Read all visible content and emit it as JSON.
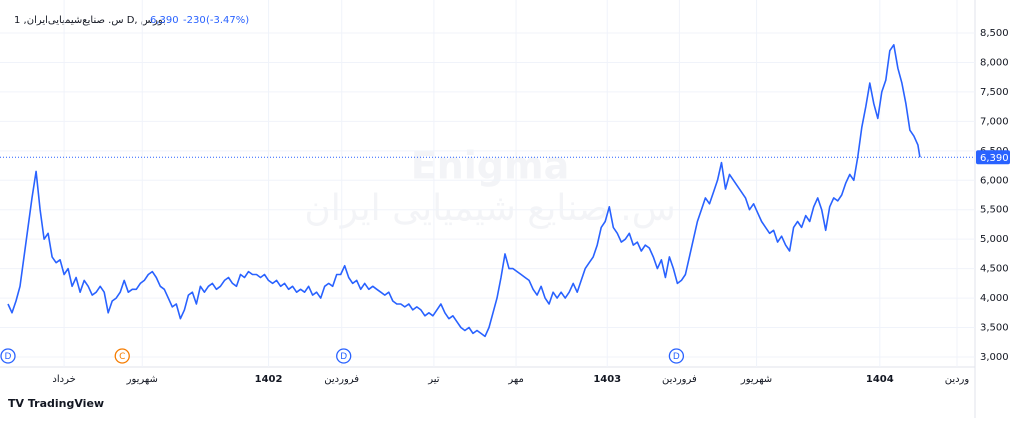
{
  "chart_data": {
    "type": "line",
    "title": "1 ,س. صنایع‌شیمیایی‌ایران D, بورس",
    "last_price": 6390,
    "last_price_label": "6,390",
    "change": -230,
    "change_percent_label": "(-3.47%)",
    "watermark": "Enigma",
    "watermark_sub": "س. صنایع شیمیایی ایران",
    "brand": "TradingView",
    "xlim": [
      0,
      240
    ],
    "ylim": [
      3000,
      8500
    ],
    "yticks": [
      {
        "value": 3000,
        "label": "3,000"
      },
      {
        "value": 3500,
        "label": "3,500"
      },
      {
        "value": 4000,
        "label": "4,000"
      },
      {
        "value": 4500,
        "label": "4,500"
      },
      {
        "value": 5000,
        "label": "5,000"
      },
      {
        "value": 5500,
        "label": "5,500"
      },
      {
        "value": 6000,
        "label": "6,000"
      },
      {
        "value": 6500,
        "label": "6,500"
      },
      {
        "value": 7000,
        "label": "7,000"
      },
      {
        "value": 7500,
        "label": "7,500"
      },
      {
        "value": 8000,
        "label": "8,000"
      },
      {
        "value": 8500,
        "label": "8,500"
      }
    ],
    "xticks": [
      {
        "value": 14,
        "label": "خرداد"
      },
      {
        "value": 33.5,
        "label": "شهریور"
      },
      {
        "value": 65,
        "label": "1402"
      },
      {
        "value": 83.25,
        "label": "فروردین"
      },
      {
        "value": 106.25,
        "label": "تیر"
      },
      {
        "value": 126.75,
        "label": "مهر"
      },
      {
        "value": 149.5,
        "label": "1403"
      },
      {
        "value": 167.5,
        "label": "فروردین"
      },
      {
        "value": 186.75,
        "label": "شهریور"
      },
      {
        "value": 217.5,
        "label": "1404"
      },
      {
        "value": 236.75,
        "label": "وردین"
      }
    ],
    "events": [
      {
        "label": "D",
        "x": 0,
        "color": "#2962ff"
      },
      {
        "label": "C",
        "x": 28.5,
        "color": "#f57c00"
      },
      {
        "label": "D",
        "x": 83.75,
        "color": "#2962ff"
      },
      {
        "label": "D",
        "x": 166.75,
        "color": "#2962ff"
      }
    ],
    "grid": true,
    "series": [
      {
        "name": "س. صنایع‌شیمیایی‌ایران",
        "color": "#2962ff",
        "x": [
          0,
          1,
          2,
          3,
          4,
          5,
          6,
          7,
          8,
          9,
          10,
          11,
          12,
          13,
          14,
          15,
          16,
          17,
          18,
          19,
          20,
          21,
          22,
          23,
          24,
          25,
          26,
          27,
          28,
          29,
          30,
          31,
          32,
          33,
          34,
          35,
          36,
          37,
          38,
          39,
          40,
          41,
          42,
          43,
          44,
          45,
          46,
          47,
          48,
          49,
          50,
          51,
          52,
          53,
          54,
          55,
          56,
          57,
          58,
          59,
          60,
          61,
          62,
          63,
          64,
          65,
          66,
          67,
          68,
          69,
          70,
          71,
          72,
          73,
          74,
          75,
          76,
          77,
          78,
          79,
          80,
          81,
          82,
          83,
          84,
          85,
          86,
          87,
          88,
          89,
          90,
          91,
          92,
          93,
          94,
          95,
          96,
          97,
          98,
          99,
          100,
          101,
          102,
          103,
          104,
          105,
          106,
          107,
          108,
          109,
          110,
          111,
          112,
          113,
          114,
          115,
          116,
          117,
          118,
          119,
          120,
          121,
          122,
          123,
          124,
          125,
          126,
          127,
          128,
          129,
          130,
          131,
          132,
          133,
          134,
          135,
          136,
          137,
          138,
          139,
          140,
          141,
          142,
          143,
          144,
          145,
          146,
          147,
          148,
          149,
          150,
          151,
          152,
          153,
          154,
          155,
          156,
          157,
          158,
          159,
          160,
          161,
          162,
          163,
          164,
          165,
          166,
          167,
          168,
          169,
          170,
          171,
          172,
          173,
          174,
          175,
          176,
          177,
          178,
          179,
          180,
          181,
          182,
          183,
          184,
          185,
          186,
          187,
          188,
          189,
          190,
          191,
          192,
          193,
          194,
          195,
          196,
          197,
          198,
          199,
          200,
          201,
          202,
          203,
          204,
          205,
          206,
          207,
          208,
          209,
          210,
          211,
          212,
          213,
          214,
          215,
          216,
          217,
          218,
          219,
          220,
          221,
          222,
          223,
          224,
          225,
          226,
          227,
          227.5
        ],
        "values": [
          3900,
          3750,
          3950,
          4200,
          4700,
          5200,
          5700,
          6150,
          5500,
          5000,
          5100,
          4700,
          4600,
          4650,
          4400,
          4500,
          4200,
          4350,
          4100,
          4300,
          4200,
          4050,
          4100,
          4200,
          4100,
          3750,
          3950,
          4000,
          4100,
          4300,
          4100,
          4150,
          4150,
          4250,
          4300,
          4400,
          4450,
          4350,
          4200,
          4150,
          4000,
          3850,
          3900,
          3650,
          3800,
          4050,
          4100,
          3900,
          4200,
          4100,
          4200,
          4250,
          4150,
          4200,
          4300,
          4350,
          4250,
          4200,
          4400,
          4350,
          4450,
          4400,
          4400,
          4350,
          4400,
          4300,
          4250,
          4300,
          4200,
          4250,
          4150,
          4200,
          4100,
          4150,
          4100,
          4200,
          4050,
          4100,
          4000,
          4200,
          4250,
          4200,
          4400,
          4400,
          4550,
          4350,
          4250,
          4300,
          4150,
          4250,
          4150,
          4200,
          4150,
          4100,
          4050,
          4100,
          3950,
          3900,
          3900,
          3850,
          3900,
          3800,
          3850,
          3800,
          3700,
          3750,
          3700,
          3800,
          3900,
          3750,
          3650,
          3700,
          3600,
          3500,
          3450,
          3500,
          3400,
          3450,
          3400,
          3350,
          3500,
          3750,
          4000,
          4350,
          4750,
          4500,
          4500,
          4450,
          4400,
          4350,
          4300,
          4150,
          4050,
          4200,
          4000,
          3900,
          4100,
          4000,
          4100,
          4000,
          4100,
          4250,
          4100,
          4300,
          4500,
          4600,
          4700,
          4900,
          5200,
          5300,
          5550,
          5200,
          5100,
          4950,
          5000,
          5100,
          4900,
          4950,
          4800,
          4900,
          4850,
          4700,
          4500,
          4650,
          4350,
          4700,
          4500,
          4250,
          4300,
          4400,
          4700,
          5000,
          5300,
          5500,
          5700,
          5600,
          5800,
          6000,
          6300,
          5850,
          6100,
          6000,
          5900,
          5800,
          5700,
          5500,
          5600,
          5450,
          5300,
          5200,
          5100,
          5150,
          4950,
          5050,
          4900,
          4800,
          5200,
          5300,
          5200,
          5400,
          5300,
          5550,
          5700,
          5500,
          5150,
          5550,
          5700,
          5650,
          5750,
          5950,
          6100,
          6000,
          6400,
          6900,
          7250,
          7650,
          7300,
          7050,
          7500,
          7700,
          8200,
          8300,
          7900,
          7650,
          7300,
          6850,
          6750,
          6600,
          6390
        ]
      }
    ]
  }
}
